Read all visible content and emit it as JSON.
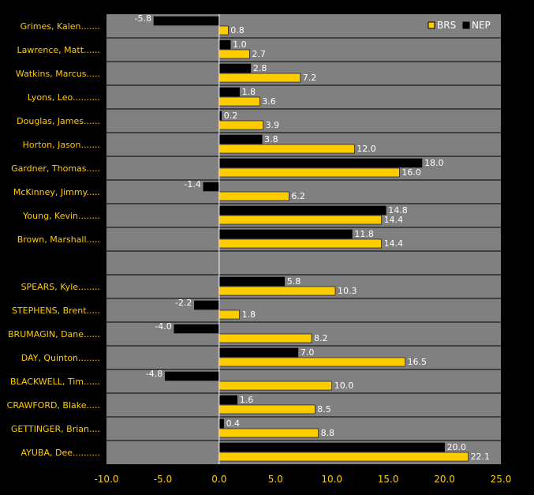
{
  "chart_data": {
    "type": "bar",
    "orientation": "horizontal",
    "categories": [
      "Grimes, Kalen.......",
      "Lawrence, Matt......",
      "Watkins, Marcus.....",
      "Lyons, Leo..........",
      "Douglas, James......",
      "Horton, Jason.......",
      "Gardner, Thomas.....",
      "McKinney, Jimmy.....",
      "Young, Kevin........",
      "Brown, Marshall.....",
      "",
      "SPEARS, Kyle........",
      "STEPHENS, Brent.....",
      "BRUMAGIN, Dane......",
      "DAY, Quinton........",
      "BLACKWELL, Tim......",
      "CRAWFORD, Blake.....",
      "GETTINGER, Brian....",
      "AYUBA, Dee.........."
    ],
    "series": [
      {
        "name": "NEP",
        "color": "#000000",
        "values": [
          -5.8,
          1.0,
          2.8,
          1.8,
          0.2,
          3.8,
          18.0,
          -1.4,
          14.8,
          11.8,
          null,
          5.8,
          -2.2,
          -4.0,
          7.0,
          -4.8,
          1.6,
          0.4,
          20.0
        ],
        "labels": [
          "-5.8",
          "1.0",
          "2.8",
          "1.8",
          "0.2",
          "3.8",
          "18.0",
          "-1.4",
          "14.8",
          "11.8",
          "",
          "5.8",
          "-2.2",
          "-4.0",
          "7.0",
          "-4.8",
          "1.6",
          "0.4",
          "20.0"
        ]
      },
      {
        "name": "BRS",
        "color": "#FFCC00",
        "values": [
          0.8,
          2.7,
          7.2,
          3.6,
          3.9,
          12.0,
          16.0,
          6.2,
          14.4,
          14.4,
          null,
          10.3,
          1.8,
          8.2,
          16.5,
          10.0,
          8.5,
          8.8,
          22.1
        ],
        "labels": [
          "0.8",
          "2.7",
          "7.2",
          "3.6",
          "3.9",
          "12.0",
          "16.0",
          "6.2",
          "14.4",
          "14.4",
          "",
          "10.3",
          "1.8",
          "8.2",
          "16.5",
          "10.0",
          "8.5",
          "8.8",
          "22.1"
        ]
      }
    ],
    "xlim": [
      -10,
      25
    ],
    "xticks": [
      "-10.0",
      "-5.0",
      "0.0",
      "5.0",
      "10.0",
      "15.0",
      "20.0",
      "25.0"
    ],
    "xtick_values": [
      -10,
      -5,
      0,
      5,
      10,
      15,
      20,
      25
    ],
    "legend": {
      "placement": "top-right",
      "entries": [
        "BRS",
        "NEP"
      ]
    },
    "grid": false,
    "colors": {
      "background": "#000000",
      "plot_area": "#808080",
      "row_divider": "#000000",
      "zero_line": "#FFFFFF",
      "label_text": "#FFCC00",
      "value_text": "#FFFFFF"
    }
  }
}
